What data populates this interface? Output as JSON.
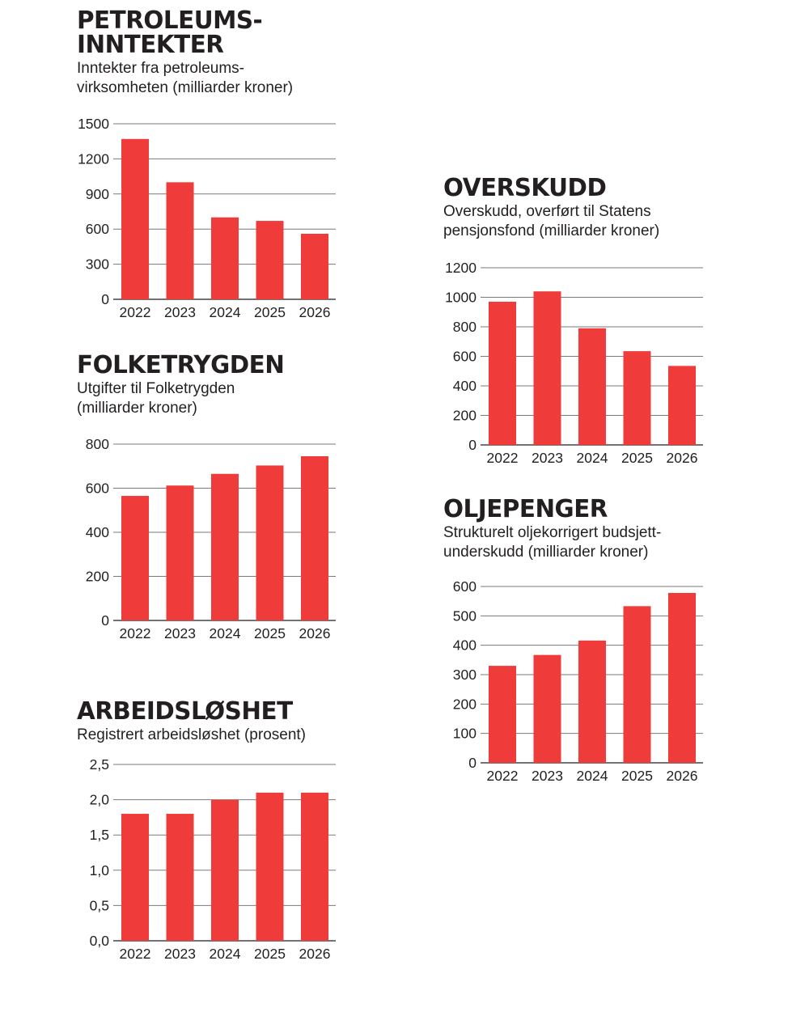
{
  "colors": {
    "bar": "#ef3b39",
    "grid": "#7a7a7a",
    "text": "#231f20"
  },
  "chart_data": [
    {
      "id": "petroleum",
      "type": "bar",
      "title": "PETROLEUMS-\nINNTEKTER",
      "subtitle": "Inntekter fra petroleums-\nvirksomheten (milliarder kroner)",
      "categories": [
        "2022",
        "2023",
        "2024",
        "2025",
        "2026"
      ],
      "values": [
        1370,
        1000,
        700,
        670,
        560
      ],
      "yticks": [
        "0",
        "300",
        "600",
        "900",
        "1200",
        "1500"
      ],
      "tickvalues": [
        0,
        300,
        600,
        900,
        1200,
        1500
      ],
      "ylim": [
        0,
        1500
      ],
      "xlabel": "",
      "ylabel": ""
    },
    {
      "id": "folketrygden",
      "type": "bar",
      "title": "FOLKETRYGDEN",
      "subtitle": "Utgifter til Folketrygden\n(milliarder kroner)",
      "categories": [
        "2022",
        "2023",
        "2024",
        "2025",
        "2026"
      ],
      "values": [
        565,
        612,
        665,
        703,
        745
      ],
      "yticks": [
        "0",
        "200",
        "400",
        "600",
        "800"
      ],
      "tickvalues": [
        0,
        200,
        400,
        600,
        800
      ],
      "ylim": [
        0,
        800
      ],
      "xlabel": "",
      "ylabel": ""
    },
    {
      "id": "arbeidsloshet",
      "type": "bar",
      "title": "ARBEIDSLØSHET",
      "subtitle": "Registrert arbeidsløshet (prosent)",
      "categories": [
        "2022",
        "2023",
        "2024",
        "2025",
        "2026"
      ],
      "values": [
        1.8,
        1.8,
        2.0,
        2.1,
        2.1
      ],
      "yticks": [
        "0,0",
        "0,5",
        "1,0",
        "1,5",
        "2,0",
        "2,5"
      ],
      "tickvalues": [
        0,
        0.5,
        1.0,
        1.5,
        2.0,
        2.5
      ],
      "ylim": [
        0,
        2.5
      ],
      "xlabel": "",
      "ylabel": ""
    },
    {
      "id": "overskudd",
      "type": "bar",
      "title": "OVERSKUDD",
      "subtitle": "Overskudd, overført til Statens\npensjonsfond (milliarder kroner)",
      "categories": [
        "2022",
        "2023",
        "2024",
        "2025",
        "2026"
      ],
      "values": [
        970,
        1040,
        790,
        635,
        535
      ],
      "yticks": [
        "0",
        "200",
        "400",
        "600",
        "800",
        "1000",
        "1200"
      ],
      "tickvalues": [
        0,
        200,
        400,
        600,
        800,
        1000,
        1200
      ],
      "ylim": [
        0,
        1200
      ],
      "xlabel": "",
      "ylabel": ""
    },
    {
      "id": "oljepenger",
      "type": "bar",
      "title": "OLJEPENGER",
      "subtitle": "Strukturelt oljekorrigert budsjett-\nunderskudd (milliarder kroner)",
      "categories": [
        "2022",
        "2023",
        "2024",
        "2025",
        "2026"
      ],
      "values": [
        330,
        367,
        416,
        533,
        578
      ],
      "yticks": [
        "0",
        "100",
        "200",
        "300",
        "400",
        "500",
        "600"
      ],
      "tickvalues": [
        0,
        100,
        200,
        300,
        400,
        500,
        600
      ],
      "ylim": [
        0,
        600
      ],
      "xlabel": "",
      "ylabel": ""
    }
  ]
}
